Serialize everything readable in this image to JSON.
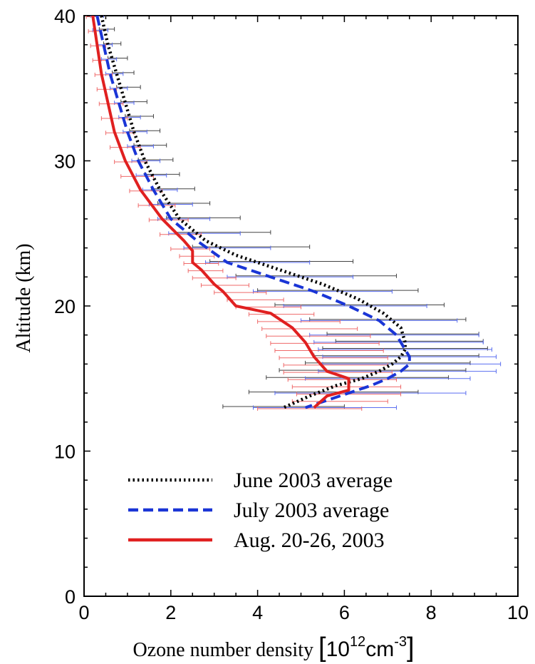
{
  "chart_data": {
    "type": "line",
    "xlabel": "Ozone number density",
    "xunit": {
      "open": "[",
      "base": "10",
      "exp1": "12",
      "mid": "cm",
      "exp2": "-3",
      "close": "]"
    },
    "ylabel": "Altitude (km)",
    "xlim": [
      0,
      10
    ],
    "ylim": [
      0,
      40
    ],
    "xticks": [
      "0",
      "2",
      "4",
      "6",
      "8",
      "10"
    ],
    "yticks": [
      "0",
      "10",
      "20",
      "30",
      "40"
    ],
    "legend_position": "bottom-center",
    "series": [
      {
        "name": "June 2003 average",
        "color": "#000000",
        "style": "dotted",
        "points": [
          [
            0.4,
            40
          ],
          [
            0.55,
            38
          ],
          [
            0.75,
            36
          ],
          [
            0.95,
            34
          ],
          [
            1.15,
            32
          ],
          [
            1.4,
            30
          ],
          [
            1.75,
            28
          ],
          [
            2.2,
            26
          ],
          [
            2.8,
            24.5
          ],
          [
            3.5,
            23.5
          ],
          [
            4.5,
            22.5
          ],
          [
            5.5,
            21.5
          ],
          [
            6.3,
            20.5
          ],
          [
            6.9,
            19.5
          ],
          [
            7.3,
            18.5
          ],
          [
            7.4,
            17.5
          ],
          [
            7.4,
            17
          ],
          [
            7.3,
            16.5
          ],
          [
            7.1,
            16
          ],
          [
            6.8,
            15.5
          ],
          [
            6.4,
            15
          ],
          [
            5.8,
            14.5
          ],
          [
            5.2,
            13.8
          ],
          [
            4.6,
            13
          ]
        ]
      },
      {
        "name": "July 2003 average",
        "color": "#1a35d6",
        "style": "dashed",
        "points": [
          [
            0.3,
            40
          ],
          [
            0.45,
            38
          ],
          [
            0.6,
            36
          ],
          [
            0.8,
            34
          ],
          [
            1.0,
            32
          ],
          [
            1.25,
            30
          ],
          [
            1.6,
            28
          ],
          [
            2.0,
            26
          ],
          [
            2.6,
            24.5
          ],
          [
            3.3,
            23
          ],
          [
            4.3,
            22
          ],
          [
            5.3,
            21
          ],
          [
            6.1,
            20
          ],
          [
            6.8,
            19
          ],
          [
            7.2,
            18
          ],
          [
            7.4,
            17
          ],
          [
            7.5,
            16.5
          ],
          [
            7.5,
            16
          ],
          [
            7.3,
            15.5
          ],
          [
            7.0,
            15
          ],
          [
            6.6,
            14.5
          ],
          [
            6.1,
            14
          ],
          [
            5.6,
            13.5
          ],
          [
            5.1,
            13
          ]
        ]
      },
      {
        "name": "Aug. 20-26, 2003",
        "color": "#e02020",
        "style": "solid",
        "points": [
          [
            0.2,
            40
          ],
          [
            0.3,
            38
          ],
          [
            0.4,
            36
          ],
          [
            0.55,
            34
          ],
          [
            0.7,
            32
          ],
          [
            0.95,
            30
          ],
          [
            1.3,
            28
          ],
          [
            1.8,
            26
          ],
          [
            2.3,
            24.5
          ],
          [
            2.5,
            23.8
          ],
          [
            2.5,
            23
          ],
          [
            2.7,
            22.5
          ],
          [
            3.0,
            21.5
          ],
          [
            3.2,
            21
          ],
          [
            3.5,
            20
          ],
          [
            4.3,
            19.5
          ],
          [
            4.8,
            18.5
          ],
          [
            5.1,
            17.5
          ],
          [
            5.3,
            16.5
          ],
          [
            5.6,
            15.5
          ],
          [
            5.9,
            15.2
          ],
          [
            6.1,
            15
          ],
          [
            6.1,
            14.2
          ],
          [
            5.6,
            13.8
          ],
          [
            5.3,
            13
          ]
        ]
      }
    ],
    "error_bars": {
      "black": [
        [
          0.3,
          0.5,
          40
        ],
        [
          0.35,
          0.7,
          39
        ],
        [
          0.45,
          0.85,
          38
        ],
        [
          0.55,
          1.0,
          37
        ],
        [
          0.65,
          1.15,
          36
        ],
        [
          0.75,
          1.3,
          35
        ],
        [
          0.85,
          1.45,
          34
        ],
        [
          0.95,
          1.6,
          33
        ],
        [
          1.05,
          1.75,
          32
        ],
        [
          1.15,
          1.9,
          31
        ],
        [
          1.25,
          2.05,
          30
        ],
        [
          1.4,
          2.2,
          29
        ],
        [
          1.55,
          2.55,
          28
        ],
        [
          1.7,
          2.9,
          27
        ],
        [
          1.9,
          3.6,
          26
        ],
        [
          2.1,
          4.3,
          25
        ],
        [
          2.5,
          5.2,
          24
        ],
        [
          2.9,
          6.2,
          23
        ],
        [
          3.5,
          7.2,
          22
        ],
        [
          4.0,
          7.7,
          21
        ],
        [
          4.4,
          8.3,
          20
        ],
        [
          5.2,
          8.8,
          19
        ],
        [
          5.6,
          9.1,
          18
        ],
        [
          5.8,
          9.2,
          17.5
        ],
        [
          5.5,
          9.3,
          17
        ],
        [
          5.3,
          9.1,
          16.5
        ],
        [
          5.1,
          8.9,
          16
        ],
        [
          4.5,
          8.8,
          15.5
        ],
        [
          4.2,
          8.4,
          15
        ],
        [
          3.8,
          7.7,
          14
        ],
        [
          3.2,
          6.0,
          13
        ]
      ],
      "blue": [
        [
          0.15,
          0.45,
          40
        ],
        [
          0.2,
          0.55,
          39
        ],
        [
          0.3,
          0.65,
          38
        ],
        [
          0.4,
          0.75,
          37
        ],
        [
          0.5,
          0.9,
          36
        ],
        [
          0.6,
          1.0,
          35
        ],
        [
          0.7,
          1.15,
          34
        ],
        [
          0.8,
          1.3,
          33
        ],
        [
          0.9,
          1.45,
          32
        ],
        [
          1.0,
          1.6,
          31
        ],
        [
          1.1,
          1.75,
          30
        ],
        [
          1.2,
          1.9,
          29
        ],
        [
          1.35,
          2.15,
          28
        ],
        [
          1.5,
          2.5,
          27
        ],
        [
          1.7,
          2.9,
          26
        ],
        [
          1.95,
          3.6,
          25
        ],
        [
          2.3,
          4.3,
          24
        ],
        [
          2.8,
          5.2,
          23
        ],
        [
          3.3,
          6.2,
          22
        ],
        [
          3.9,
          7.1,
          21
        ],
        [
          4.6,
          7.9,
          20
        ],
        [
          5.0,
          8.6,
          19
        ],
        [
          5.2,
          9.1,
          18
        ],
        [
          5.3,
          9.2,
          17.5
        ],
        [
          5.4,
          9.4,
          17
        ],
        [
          5.5,
          9.5,
          16.5
        ],
        [
          5.5,
          9.6,
          16
        ],
        [
          5.4,
          9.5,
          15.5
        ],
        [
          5.1,
          8.9,
          15
        ],
        [
          4.4,
          8.8,
          14
        ],
        [
          3.9,
          7.2,
          13
        ]
      ],
      "red": [
        [
          0.05,
          0.3,
          40
        ],
        [
          0.1,
          0.4,
          39
        ],
        [
          0.15,
          0.5,
          38
        ],
        [
          0.2,
          0.55,
          37
        ],
        [
          0.25,
          0.65,
          36
        ],
        [
          0.3,
          0.75,
          35
        ],
        [
          0.35,
          0.9,
          34
        ],
        [
          0.4,
          1.0,
          33
        ],
        [
          0.5,
          1.15,
          32
        ],
        [
          0.6,
          1.3,
          31
        ],
        [
          0.7,
          1.45,
          30
        ],
        [
          0.85,
          1.6,
          29
        ],
        [
          1.05,
          1.8,
          28
        ],
        [
          1.25,
          2.1,
          27
        ],
        [
          1.5,
          2.4,
          26
        ],
        [
          1.75,
          2.7,
          25
        ],
        [
          2.0,
          2.9,
          24
        ],
        [
          2.2,
          3.0,
          23.5
        ],
        [
          2.3,
          3.1,
          23
        ],
        [
          2.4,
          3.2,
          22.5
        ],
        [
          2.5,
          3.5,
          22
        ],
        [
          2.7,
          3.8,
          21.5
        ],
        [
          3.0,
          4.2,
          21
        ],
        [
          3.3,
          4.6,
          20.5
        ],
        [
          3.5,
          5.0,
          20
        ],
        [
          3.8,
          5.3,
          19.5
        ],
        [
          4.0,
          5.9,
          19
        ],
        [
          4.1,
          6.3,
          18.5
        ],
        [
          4.2,
          6.6,
          18
        ],
        [
          4.3,
          6.8,
          17.5
        ],
        [
          4.4,
          6.9,
          17
        ],
        [
          4.5,
          7.0,
          16.5
        ],
        [
          4.6,
          7.0,
          16
        ],
        [
          4.6,
          7.1,
          15.5
        ],
        [
          4.7,
          7.2,
          15
        ],
        [
          4.8,
          7.3,
          14.5
        ],
        [
          4.9,
          7.3,
          14
        ],
        [
          4.8,
          7.0,
          13.5
        ],
        [
          4.0,
          6.4,
          13
        ]
      ]
    },
    "legend": [
      {
        "label": "June 2003 average",
        "color": "#000000",
        "style": "dotted"
      },
      {
        "label": "July 2003 average",
        "color": "#1a35d6",
        "style": "dashed"
      },
      {
        "label": "Aug. 20-26, 2003",
        "color": "#e02020",
        "style": "solid"
      }
    ]
  }
}
